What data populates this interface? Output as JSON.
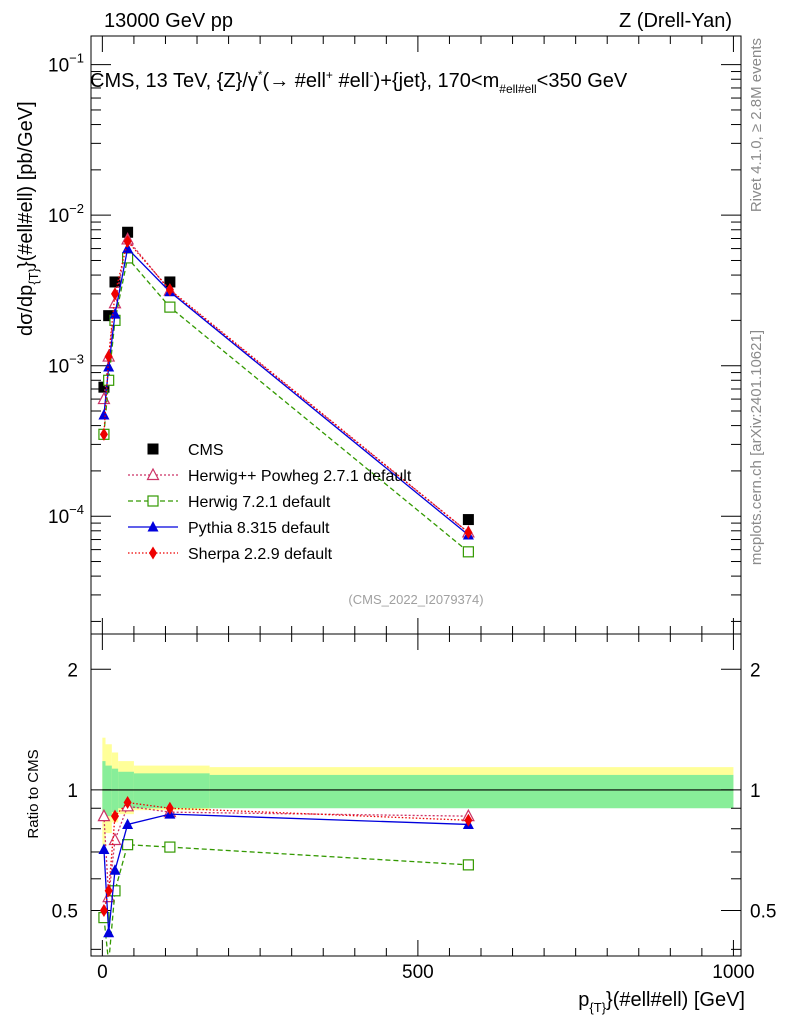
{
  "header": {
    "left": "13000 GeV pp",
    "right": "Z (Drell-Yan)"
  },
  "side_labels": {
    "rivet": "Rivet 4.1.0, ≥ 2.8M events",
    "mcplots": "mcplots.cern.ch [arXiv:2401.10621]"
  },
  "plot_title": "CMS, 13 TeV, {Z}/γ* (→  #ell⁺ #ell⁻)+{jet}, 170<m#ell#ell<350 GeV",
  "plot_title_parts": {
    "a": "CMS, 13 TeV, {Z}/γ",
    "star": "*",
    "b": "(→  #ell",
    "plus": "+",
    "c": " #ell",
    "minus": "-",
    "d": ")+{jet}, 170<m",
    "sub": "#ell#ell",
    "e": "<350 GeV"
  },
  "analysis_id": "(CMS_2022_I2079374)",
  "y_axis_label": {
    "a": "dσ/dp",
    "sub": "{T}",
    "b": "}(#ell#ell) [pb/GeV]"
  },
  "x_axis_label": {
    "a": "p",
    "sub": "{T}",
    "b": "}(#ell#ell) [GeV]"
  },
  "ratio_label": "Ratio to CMS",
  "chart_data": [
    {
      "type": "scatter",
      "panel": "main",
      "yscale": "log",
      "ylim": [
        1.65e-05,
        0.155
      ],
      "xlim": [
        -18,
        1012
      ],
      "y_tick_labels": [
        {
          "base": "10",
          "exp": "−1",
          "value": 0.1
        },
        {
          "base": "10",
          "exp": "−2",
          "value": 0.01
        },
        {
          "base": "10",
          "exp": "−3",
          "value": 0.001
        },
        {
          "base": "10",
          "exp": "−4",
          "value": 0.0001
        }
      ],
      "legend": {
        "position": "lower-left",
        "entries": [
          "CMS",
          "Herwig++ Powheg 2.7.1 default",
          "Herwig 7.2.1 default",
          "Pythia 8.315 default",
          "Sherpa 2.2.9 default"
        ]
      },
      "series": [
        {
          "name": "CMS",
          "style": "data",
          "color": "#000000",
          "x": [
            2.5,
            10,
            20,
            40,
            107,
            580
          ],
          "y": [
            0.00072,
            0.00215,
            0.0036,
            0.0077,
            0.0036,
            9.5e-05
          ]
        },
        {
          "name": "Herwig++ Powheg 2.7.1 default",
          "style": "open-triangle",
          "color": "#cc3366",
          "x": [
            2.5,
            10,
            20,
            40,
            107,
            580
          ],
          "y": [
            0.0006,
            0.00115,
            0.0026,
            0.0069,
            0.00315,
            7.8e-05
          ]
        },
        {
          "name": "Herwig 7.2.1 default",
          "style": "open-square",
          "color": "#339900",
          "x": [
            2.5,
            10,
            20,
            40,
            107,
            580
          ],
          "y": [
            0.00035,
            0.0008,
            0.002,
            0.0052,
            0.00245,
            5.8e-05
          ]
        },
        {
          "name": "Pythia 8.315 default",
          "style": "filled-triangle",
          "color": "#0000dd",
          "x": [
            2.5,
            10,
            20,
            40,
            107,
            580
          ],
          "y": [
            0.00047,
            0.00098,
            0.0022,
            0.006,
            0.0031,
            7.5e-05
          ]
        },
        {
          "name": "Sherpa 2.2.9 default",
          "style": "filled-diamond",
          "color": "#ee0000",
          "x": [
            2.5,
            10,
            20,
            40,
            107,
            580
          ],
          "y": [
            0.00035,
            0.00115,
            0.003,
            0.0067,
            0.0032,
            7.8e-05
          ]
        }
      ]
    },
    {
      "type": "scatter",
      "panel": "ratio",
      "yscale": "log",
      "ylim": [
        0.385,
        2.45
      ],
      "xlim": [
        -18,
        1012
      ],
      "y_tick_labels": [
        {
          "label": "2",
          "value": 2
        },
        {
          "label": "1",
          "value": 1
        },
        {
          "label": "0.5",
          "value": 0.5
        }
      ],
      "x_tick_labels": [
        {
          "label": "0",
          "value": 0
        },
        {
          "label": "500",
          "value": 500
        },
        {
          "label": "1000",
          "value": 1000
        }
      ],
      "bands": {
        "edges": [
          0,
          5,
          15,
          25,
          50,
          170,
          1000
        ],
        "green_lo": [
          0.84,
          0.86,
          0.88,
          0.9,
          0.9,
          0.9
        ],
        "green_hi": [
          1.18,
          1.15,
          1.13,
          1.11,
          1.1,
          1.09
        ],
        "yellow_lo": [
          0.7,
          0.78,
          0.83,
          0.87,
          0.89,
          0.93
        ],
        "yellow_hi": [
          1.35,
          1.3,
          1.24,
          1.18,
          1.15,
          1.14
        ]
      },
      "series": [
        {
          "name": "Herwig++ Powheg 2.7.1 default",
          "style": "open-triangle",
          "color": "#cc3366",
          "x": [
            2.5,
            10,
            20,
            40,
            107,
            580
          ],
          "y": [
            0.86,
            0.54,
            0.75,
            0.91,
            0.88,
            0.86
          ]
        },
        {
          "name": "Herwig 7.2.1 default",
          "style": "open-square",
          "color": "#339900",
          "x": [
            2.5,
            10,
            20,
            40,
            107,
            580
          ],
          "y": [
            0.48,
            0.37,
            0.56,
            0.73,
            0.72,
            0.65
          ]
        },
        {
          "name": "Pythia 8.315 default",
          "style": "filled-triangle",
          "color": "#0000dd",
          "x": [
            2.5,
            10,
            20,
            40,
            107,
            580
          ],
          "y": [
            0.71,
            0.44,
            0.63,
            0.82,
            0.87,
            0.82
          ]
        },
        {
          "name": "Sherpa 2.2.9 default",
          "style": "filled-diamond",
          "color": "#ee0000",
          "x": [
            2.5,
            10,
            20,
            40,
            107,
            580
          ],
          "y": [
            0.5,
            0.56,
            0.86,
            0.93,
            0.9,
            0.84
          ]
        }
      ]
    }
  ]
}
